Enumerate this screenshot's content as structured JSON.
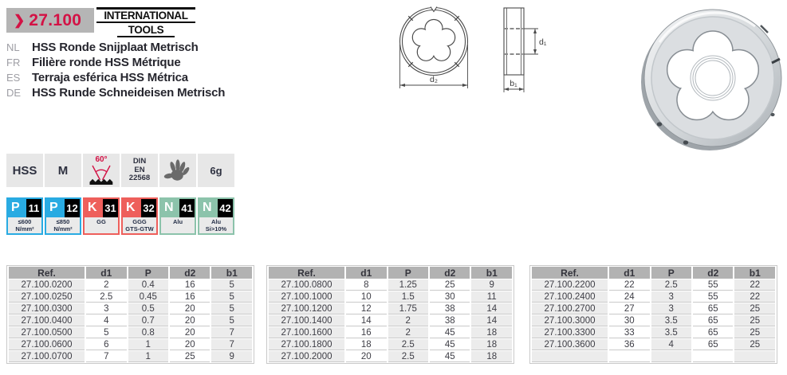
{
  "page": {
    "code_chevron": "❯",
    "code": "27.100"
  },
  "logo": {
    "line1": "INTERNATIONAL",
    "line2": "TOOLS"
  },
  "titles": [
    {
      "lang": "NL",
      "text": "HSS Ronde Snijplaat Metrisch"
    },
    {
      "lang": "FR",
      "text": "Filière ronde HSS Métrique"
    },
    {
      "lang": "ES",
      "text": "Terraja esférica HSS Métrica"
    },
    {
      "lang": "DE",
      "text": "HSS Runde Schneideisen Metrisch"
    }
  ],
  "diagram": {
    "d1": "d₁",
    "d2": "d₂",
    "b1": "b₁"
  },
  "spec_icons": {
    "material": "HSS",
    "thread_form": "M",
    "flank_angle": "60°",
    "din_lines": [
      "DIN",
      "EN",
      "22568"
    ],
    "hand_icon": "hand-icon",
    "tolerance": "6g"
  },
  "material_badges": [
    {
      "letter": "P",
      "number": "11",
      "color": "#29abe2",
      "desc": [
        "≤600 N/mm²"
      ]
    },
    {
      "letter": "P",
      "number": "12",
      "color": "#29abe2",
      "desc": [
        "≤850 N/mm²"
      ]
    },
    {
      "letter": "K",
      "number": "31",
      "color": "#ee5f5b",
      "desc": [
        "GG"
      ]
    },
    {
      "letter": "K",
      "number": "32",
      "color": "#ee5f5b",
      "desc": [
        "GGG",
        "GTS-GTW"
      ]
    },
    {
      "letter": "N",
      "number": "41",
      "color": "#8cc3ab",
      "desc": [
        "Alu"
      ]
    },
    {
      "letter": "N",
      "number": "42",
      "color": "#8cc3ab",
      "desc": [
        "Alu",
        "Si>10%"
      ]
    }
  ],
  "colors": {
    "accent_red": "#d31245",
    "badge_blue": "#29abe2",
    "badge_red": "#ee5f5b",
    "badge_green": "#8cc3ab",
    "icon_box_gray": "#e7e7e7",
    "table_header_gray": "#b2b2b2",
    "table_cell_gray": "#ececec"
  },
  "tables": [
    {
      "headers": [
        "Ref.",
        "d1",
        "P",
        "d2",
        "b1"
      ],
      "rows": [
        [
          "27.100.0200",
          "2",
          "0.4",
          "16",
          "5"
        ],
        [
          "27.100.0250",
          "2.5",
          "0.45",
          "16",
          "5"
        ],
        [
          "27.100.0300",
          "3",
          "0.5",
          "20",
          "5"
        ],
        [
          "27.100.0400",
          "4",
          "0.7",
          "20",
          "5"
        ],
        [
          "27.100.0500",
          "5",
          "0.8",
          "20",
          "7"
        ],
        [
          "27.100.0600",
          "6",
          "1",
          "20",
          "7"
        ],
        [
          "27.100.0700",
          "7",
          "1",
          "25",
          "9"
        ]
      ]
    },
    {
      "headers": [
        "Ref.",
        "d1",
        "P",
        "d2",
        "b1"
      ],
      "rows": [
        [
          "27.100.0800",
          "8",
          "1.25",
          "25",
          "9"
        ],
        [
          "27.100.1000",
          "10",
          "1.5",
          "30",
          "11"
        ],
        [
          "27.100.1200",
          "12",
          "1.75",
          "38",
          "14"
        ],
        [
          "27.100.1400",
          "14",
          "2",
          "38",
          "14"
        ],
        [
          "27.100.1600",
          "16",
          "2",
          "45",
          "18"
        ],
        [
          "27.100.1800",
          "18",
          "2.5",
          "45",
          "18"
        ],
        [
          "27.100.2000",
          "20",
          "2.5",
          "45",
          "18"
        ]
      ]
    },
    {
      "headers": [
        "Ref.",
        "d1",
        "P",
        "d2",
        "b1"
      ],
      "rows": [
        [
          "27.100.2200",
          "22",
          "2.5",
          "55",
          "22"
        ],
        [
          "27.100.2400",
          "24",
          "3",
          "55",
          "22"
        ],
        [
          "27.100.2700",
          "27",
          "3",
          "65",
          "25"
        ],
        [
          "27.100.3000",
          "30",
          "3.5",
          "65",
          "25"
        ],
        [
          "27.100.3300",
          "33",
          "3.5",
          "65",
          "25"
        ],
        [
          "27.100.3600",
          "36",
          "4",
          "65",
          "25"
        ],
        [
          "",
          "",
          "",
          "",
          ""
        ]
      ]
    }
  ]
}
